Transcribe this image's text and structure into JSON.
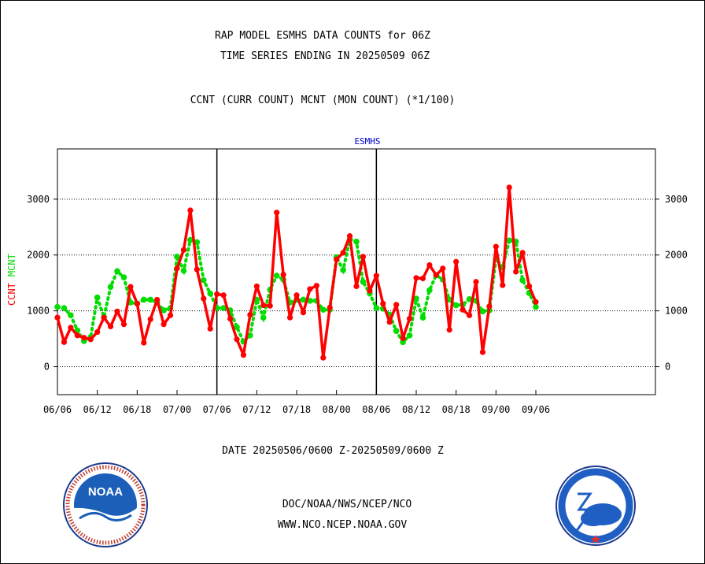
{
  "header": {
    "line1": "RAP MODEL ESMHS DATA COUNTS for 06Z",
    "line2": "TIME SERIES ENDING IN 20250509 06Z",
    "line3": "CCNT (CURR COUNT) MCNT (MON COUNT) (*1/100)"
  },
  "footer": {
    "date_range": "DATE 20250506/0600 Z-20250509/0600 Z",
    "org_path": "DOC/NOAA/NWS/NCEP/NCO",
    "website": "WWW.NCO.NCEP.NOAA.GOV"
  },
  "logos": {
    "noaa": {
      "name": "noaa-logo",
      "text": "NOAA"
    },
    "nws": {
      "name": "nws-logo"
    }
  },
  "colors": {
    "ccnt": "#ff0000",
    "mcnt": "#00dd00",
    "title": "#0000cc",
    "footer_blue": "#1f1fbf"
  },
  "chart_data": {
    "type": "line",
    "title": "ESMHS",
    "xlabel": "",
    "ylabel_left": [
      "CCNT",
      "MCNT"
    ],
    "ylim": [
      -500,
      3900
    ],
    "yticks": [
      0,
      1000,
      2000,
      3000
    ],
    "xlim": [
      0,
      90
    ],
    "xticks": [
      {
        "x": 0,
        "label": "06/06"
      },
      {
        "x": 6,
        "label": "06/12"
      },
      {
        "x": 12,
        "label": "06/18"
      },
      {
        "x": 18,
        "label": "07/00"
      },
      {
        "x": 24,
        "label": "07/06"
      },
      {
        "x": 30,
        "label": "07/12"
      },
      {
        "x": 36,
        "label": "07/18"
      },
      {
        "x": 42,
        "label": "08/00"
      },
      {
        "x": 48,
        "label": "08/06"
      },
      {
        "x": 54,
        "label": "08/12"
      },
      {
        "x": 60,
        "label": "08/18"
      },
      {
        "x": 66,
        "label": "09/00"
      },
      {
        "x": 72,
        "label": "09/06"
      }
    ],
    "day_dividers": [
      24,
      48
    ],
    "grid": "horizontal dotted",
    "series": [
      {
        "name": "CCNT",
        "color": "#ff0000",
        "style": "solid",
        "x": [
          0,
          1,
          2,
          3,
          4,
          5,
          6,
          7,
          8,
          9,
          10,
          11,
          12,
          13,
          14,
          15,
          16,
          17,
          18,
          19,
          20,
          21,
          22,
          23,
          24,
          25,
          26,
          27,
          28,
          29,
          30,
          31,
          32,
          33,
          34,
          35,
          36,
          37,
          38,
          39,
          40,
          41,
          42,
          43,
          44,
          45,
          46,
          47,
          48,
          49,
          50,
          51,
          52,
          53,
          54,
          55,
          56,
          57,
          58,
          59,
          60,
          61,
          62,
          63,
          64,
          65,
          66,
          67,
          68,
          69,
          70,
          71,
          72
        ],
        "values": [
          880,
          440,
          700,
          560,
          520,
          490,
          620,
          880,
          720,
          990,
          760,
          1430,
          1130,
          430,
          850,
          1200,
          760,
          920,
          1760,
          2090,
          2800,
          1740,
          1220,
          680,
          1300,
          1280,
          860,
          490,
          210,
          930,
          1440,
          1100,
          1090,
          2760,
          1650,
          880,
          1280,
          970,
          1390,
          1450,
          160,
          1060,
          1920,
          2040,
          2340,
          1440,
          1970,
          1360,
          1630,
          1130,
          800,
          1110,
          510,
          860,
          1590,
          1580,
          1820,
          1640,
          1760,
          660,
          1880,
          1020,
          920,
          1520,
          260,
          1080,
          2150,
          1460,
          3210,
          1700,
          2040,
          1440,
          1160
        ]
      },
      {
        "name": "MCNT",
        "color": "#00dd00",
        "style": "dotted",
        "x": [
          0,
          1,
          2,
          3,
          4,
          5,
          6,
          7,
          8,
          9,
          10,
          11,
          12,
          13,
          14,
          15,
          16,
          17,
          18,
          19,
          20,
          21,
          22,
          23,
          24,
          25,
          26,
          27,
          28,
          29,
          30,
          31,
          32,
          33,
          34,
          35,
          36,
          37,
          38,
          39,
          40,
          41,
          42,
          43,
          44,
          45,
          46,
          47,
          48,
          49,
          50,
          51,
          52,
          53,
          54,
          55,
          56,
          57,
          58,
          59,
          60,
          61,
          62,
          63,
          64,
          65,
          66,
          67,
          68,
          69,
          70,
          71,
          72
        ],
        "values": [
          1070,
          1050,
          920,
          650,
          460,
          530,
          1240,
          890,
          1430,
          1710,
          1600,
          1150,
          1130,
          1200,
          1200,
          1150,
          1010,
          1050,
          1970,
          1720,
          2270,
          2230,
          1550,
          1310,
          1050,
          1050,
          1010,
          710,
          450,
          560,
          1200,
          880,
          1380,
          1630,
          1560,
          1150,
          1200,
          1200,
          1180,
          1180,
          1020,
          1020,
          1960,
          1730,
          2280,
          2240,
          1520,
          1310,
          1050,
          1040,
          930,
          640,
          440,
          560,
          1220,
          880,
          1370,
          1640,
          1560,
          1200,
          1100,
          1110,
          1210,
          1180,
          990,
          1010,
          1930,
          1780,
          2260,
          2240,
          1550,
          1320,
          1070
        ]
      }
    ]
  }
}
